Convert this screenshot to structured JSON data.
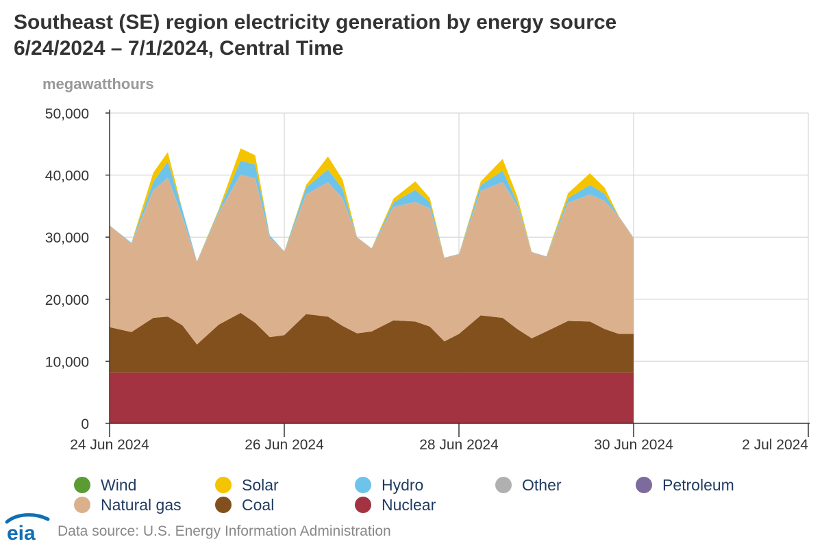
{
  "title_line1": "Southeast (SE) region electricity generation by energy source",
  "title_line2": "6/24/2024 – 7/1/2024, Central Time",
  "y_unit": "megawatthours",
  "source": "Data source: U.S. Energy Information Administration",
  "logo_text": "eia",
  "legend": [
    {
      "name": "Wind",
      "color": "#5b9b33"
    },
    {
      "name": "Solar",
      "color": "#f5c400"
    },
    {
      "name": "Hydro",
      "color": "#6ec3ea"
    },
    {
      "name": "Other",
      "color": "#b0b0b0"
    },
    {
      "name": "Petroleum",
      "color": "#7d6b9d"
    },
    {
      "name": "Natural gas",
      "color": "#dbb18d"
    },
    {
      "name": "Coal",
      "color": "#82501d"
    },
    {
      "name": "Nuclear",
      "color": "#a33340"
    }
  ],
  "chart_data": {
    "type": "area",
    "stacked": true,
    "title": "Southeast (SE) region electricity generation by energy source 6/24/2024 – 7/1/2024, Central Time",
    "ylabel": "megawatthours",
    "ylim": [
      0,
      50000
    ],
    "yticks": [
      0,
      10000,
      20000,
      30000,
      40000,
      50000
    ],
    "ytick_labels": [
      "0",
      "10,000",
      "20,000",
      "30,000",
      "40,000",
      "50,000"
    ],
    "xlim_days": [
      0,
      8
    ],
    "xticks_days": [
      0,
      2,
      4,
      6,
      8
    ],
    "xtick_labels": [
      "24 Jun 2024",
      "26 Jun 2024",
      "28 Jun 2024",
      "30 Jun 2024",
      "2 Jul 2024"
    ],
    "x_hours": [
      0,
      6,
      12,
      16,
      20,
      24,
      30,
      36,
      40,
      44,
      48,
      54,
      60,
      64,
      68,
      72,
      78,
      84,
      88,
      92,
      96,
      102,
      108,
      112,
      116,
      120,
      126,
      132,
      136,
      140,
      144
    ],
    "series": [
      {
        "name": "Nuclear",
        "values": [
          8200,
          8200,
          8200,
          8200,
          8200,
          8200,
          8200,
          8200,
          8200,
          8200,
          8200,
          8200,
          8200,
          8200,
          8200,
          8200,
          8200,
          8200,
          8200,
          8200,
          8200,
          8200,
          8200,
          8200,
          8200,
          8200,
          8200,
          8200,
          8200,
          8200,
          8200
        ]
      },
      {
        "name": "Coal",
        "values": [
          7300,
          6500,
          8800,
          9000,
          7600,
          4500,
          7700,
          9600,
          8000,
          5700,
          6000,
          9400,
          9000,
          7500,
          6300,
          6600,
          8400,
          8200,
          7400,
          5000,
          6200,
          9200,
          8800,
          7000,
          5500,
          6600,
          8300,
          8200,
          7000,
          6200,
          6200
        ]
      },
      {
        "name": "Natural gas",
        "values": [
          16300,
          14200,
          20500,
          22300,
          17400,
          13300,
          18000,
          22200,
          23200,
          16000,
          13400,
          19200,
          21600,
          20500,
          15400,
          13300,
          18200,
          19200,
          19000,
          13400,
          12800,
          20000,
          21800,
          19800,
          13800,
          12000,
          19000,
          20400,
          20600,
          18800,
          15400
        ]
      },
      {
        "name": "Other",
        "values": [
          100,
          100,
          100,
          100,
          100,
          100,
          100,
          100,
          100,
          100,
          100,
          100,
          100,
          100,
          100,
          100,
          100,
          100,
          100,
          100,
          100,
          100,
          100,
          100,
          100,
          100,
          100,
          100,
          100,
          100,
          100
        ]
      },
      {
        "name": "Petroleum",
        "values": [
          0,
          0,
          0,
          0,
          0,
          0,
          0,
          0,
          0,
          0,
          0,
          0,
          0,
          0,
          0,
          0,
          0,
          0,
          0,
          0,
          0,
          0,
          0,
          0,
          0,
          0,
          0,
          0,
          0,
          0,
          0
        ]
      },
      {
        "name": "Hydro",
        "values": [
          0,
          100,
          1300,
          2600,
          1100,
          0,
          300,
          2200,
          2200,
          300,
          0,
          1100,
          2000,
          1500,
          0,
          0,
          700,
          1900,
          900,
          0,
          0,
          900,
          1800,
          600,
          0,
          0,
          700,
          1500,
          1100,
          0,
          0
        ]
      },
      {
        "name": "Solar",
        "values": [
          0,
          0,
          1500,
          1500,
          0,
          0,
          200,
          2000,
          1500,
          0,
          0,
          400,
          2100,
          1500,
          0,
          0,
          600,
          1400,
          700,
          0,
          0,
          600,
          1900,
          900,
          0,
          0,
          800,
          1900,
          1000,
          0,
          0
        ]
      },
      {
        "name": "Wind",
        "values": [
          0,
          0,
          0,
          0,
          0,
          0,
          0,
          0,
          0,
          0,
          0,
          0,
          0,
          0,
          0,
          0,
          0,
          0,
          0,
          0,
          0,
          0,
          0,
          0,
          0,
          0,
          0,
          0,
          0,
          0,
          0
        ]
      }
    ]
  }
}
